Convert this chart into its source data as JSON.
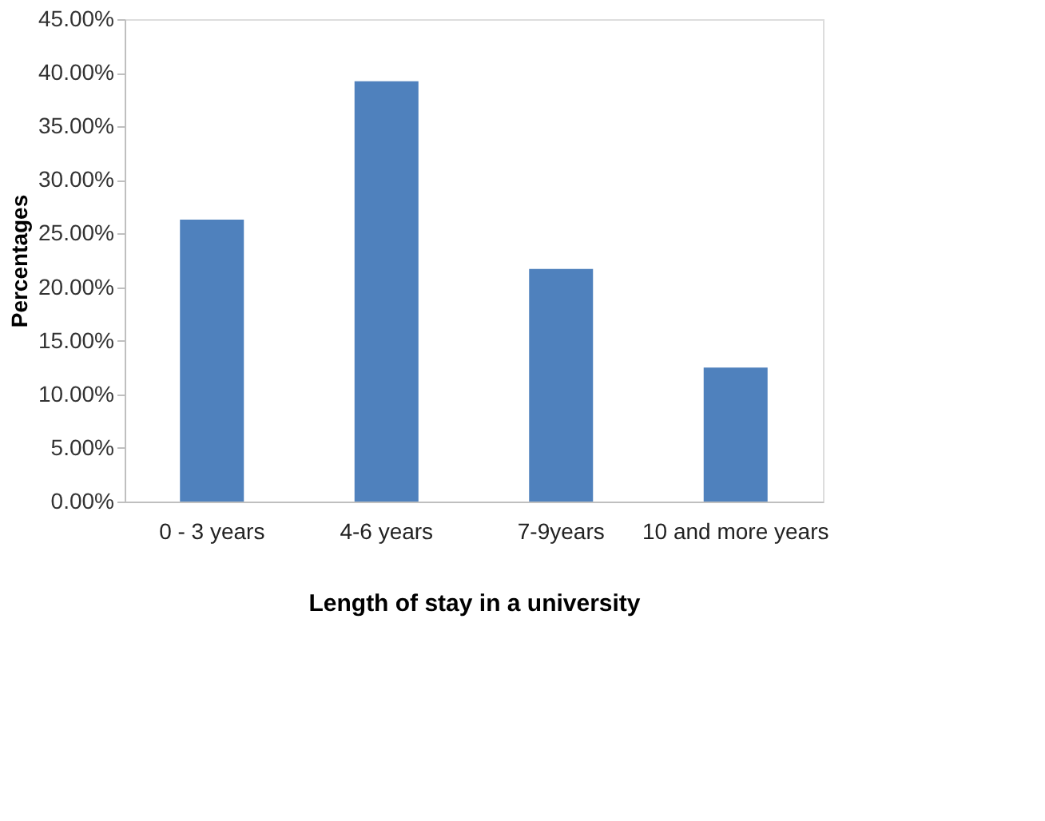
{
  "chart_data": {
    "type": "bar",
    "xlabel": "Length of stay in a university",
    "ylabel": "Percentages",
    "categories": [
      "0 - 3 years",
      "4-6 years",
      "7-9years",
      "10 and more years"
    ],
    "values": [
      26.3,
      39.2,
      21.7,
      12.5
    ],
    "color": "#4f81bd",
    "ylim": [
      0,
      45
    ],
    "yticks": [
      {
        "value": 0,
        "label": "0.00%"
      },
      {
        "value": 5,
        "label": "5.00%"
      },
      {
        "value": 10,
        "label": "10.00%"
      },
      {
        "value": 15,
        "label": "15.00%"
      },
      {
        "value": 20,
        "label": "20.00%"
      },
      {
        "value": 25,
        "label": "25.00%"
      },
      {
        "value": 30,
        "label": "30.00%"
      },
      {
        "value": 35,
        "label": "35.00%"
      },
      {
        "value": 40,
        "label": "40.00%"
      },
      {
        "value": 45,
        "label": "45.00%"
      }
    ],
    "grid": false
  }
}
